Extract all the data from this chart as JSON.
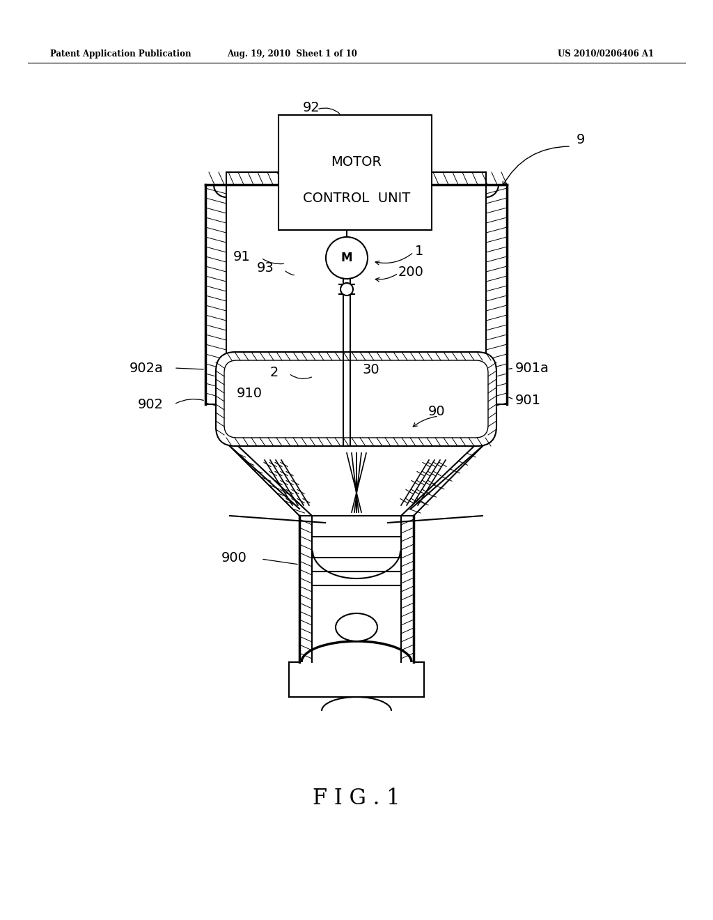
{
  "header_left": "Patent Application Publication",
  "header_center": "Aug. 19, 2010  Sheet 1 of 10",
  "header_right": "US 2010/0206406 A1",
  "figure_label": "F I G . 1",
  "bg_color": "#ffffff",
  "line_color": "#000000",
  "hatch_color": "#555555"
}
